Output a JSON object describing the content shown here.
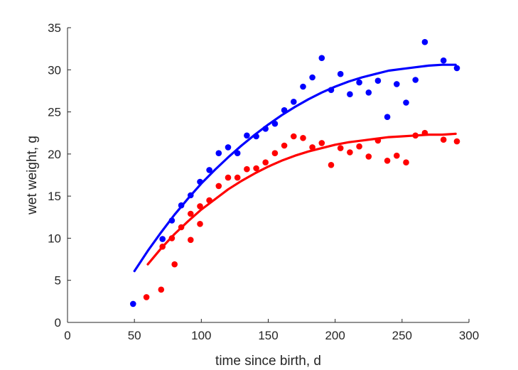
{
  "chart_data": {
    "type": "scatter",
    "title": "",
    "xlabel": "time since birth, d",
    "ylabel": "wet weight, g",
    "xlim": [
      0,
      300
    ],
    "ylim": [
      0,
      35
    ],
    "xticks": [
      0,
      50,
      100,
      150,
      200,
      250,
      300
    ],
    "yticks": [
      0,
      5,
      10,
      15,
      20,
      25,
      30,
      35
    ],
    "grid": false,
    "series": [
      {
        "kind": "points",
        "color": "#0000ff",
        "x": [
          49,
          71,
          78,
          85,
          92,
          99,
          106,
          113,
          120,
          127,
          134,
          141,
          148,
          155,
          162,
          169,
          176,
          183,
          190,
          197,
          204,
          211,
          218,
          225,
          232,
          239,
          246,
          253,
          260,
          267,
          281,
          291
        ],
        "y": [
          2.2,
          9.9,
          12.1,
          13.9,
          15.1,
          16.7,
          18.1,
          20.1,
          20.8,
          20.1,
          22.2,
          22.1,
          23.0,
          23.6,
          25.2,
          26.2,
          28.0,
          29.1,
          31.4,
          27.6,
          29.5,
          27.1,
          28.5,
          27.3,
          28.7,
          24.4,
          28.3,
          26.1,
          28.8,
          33.3,
          31.1,
          30.2
        ]
      },
      {
        "kind": "fit",
        "color": "#0000ff",
        "x": [
          50,
          60,
          70,
          80,
          90,
          100,
          110,
          120,
          130,
          140,
          150,
          160,
          170,
          180,
          190,
          200,
          210,
          220,
          230,
          240,
          250,
          260,
          270,
          280,
          290
        ],
        "y": [
          6.1,
          8.5,
          10.7,
          12.8,
          14.7,
          16.5,
          18.1,
          19.6,
          21.0,
          22.3,
          23.5,
          24.6,
          25.6,
          26.5,
          27.3,
          28.0,
          28.6,
          29.1,
          29.5,
          29.9,
          30.1,
          30.3,
          30.5,
          30.6,
          30.6
        ]
      },
      {
        "kind": "points",
        "color": "#ff0000",
        "x": [
          59,
          70,
          71,
          78,
          80,
          85,
          92,
          92,
          99,
          99,
          106,
          113,
          120,
          127,
          134,
          141,
          148,
          155,
          162,
          169,
          176,
          183,
          190,
          197,
          204,
          211,
          218,
          225,
          232,
          239,
          246,
          253,
          260,
          267,
          281,
          291
        ],
        "y": [
          3.0,
          3.9,
          9.0,
          10.0,
          6.9,
          11.3,
          9.8,
          12.9,
          13.8,
          11.7,
          14.5,
          16.2,
          17.2,
          17.2,
          18.2,
          18.3,
          19.0,
          20.1,
          21.0,
          22.1,
          21.9,
          20.8,
          21.3,
          18.7,
          20.7,
          20.2,
          20.9,
          19.7,
          21.6,
          19.2,
          19.8,
          19.0,
          22.2,
          22.5,
          21.7,
          21.5
        ]
      },
      {
        "kind": "fit",
        "color": "#ff0000",
        "x": [
          60,
          70,
          80,
          90,
          100,
          110,
          120,
          130,
          140,
          150,
          160,
          170,
          180,
          190,
          200,
          210,
          220,
          230,
          240,
          250,
          260,
          270,
          280,
          290
        ],
        "y": [
          6.9,
          8.8,
          10.5,
          12.0,
          13.4,
          14.6,
          15.8,
          16.8,
          17.7,
          18.5,
          19.2,
          19.8,
          20.3,
          20.7,
          21.1,
          21.4,
          21.6,
          21.8,
          22.0,
          22.1,
          22.2,
          22.3,
          22.3,
          22.4
        ]
      }
    ]
  }
}
